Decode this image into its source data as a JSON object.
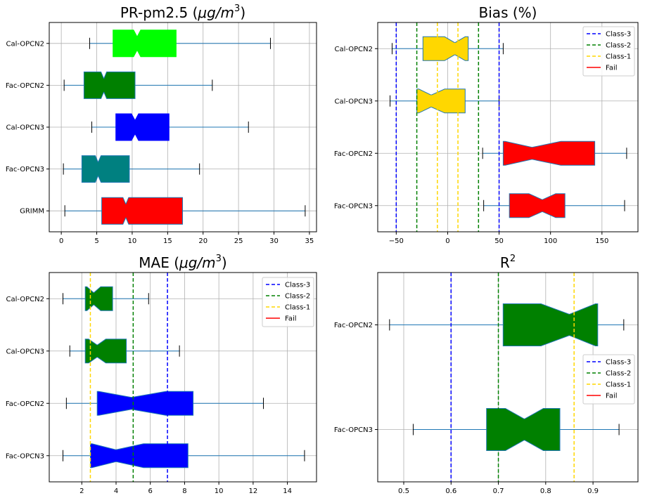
{
  "chart_data": [
    {
      "id": "pm25",
      "type": "boxplot",
      "orientation": "horizontal",
      "notched": true,
      "title": "PR-pm2.5 ",
      "title_math": "μg/m",
      "title_sup": "3",
      "title_suffix": "",
      "xlim": [
        -1.7,
        36
      ],
      "xticks": [
        0,
        5,
        10,
        15,
        20,
        25,
        30,
        35
      ],
      "xtick_labels": [
        "0",
        "5",
        "10",
        "15",
        "20",
        "25",
        "30",
        "35"
      ],
      "grid": true,
      "categories": [
        "Cal-OPCN2",
        "Fac-OPCN2",
        "Cal-OPCN3",
        "Fac-OPCN3",
        "GRIMM"
      ],
      "boxes": [
        {
          "label": "Cal-OPCN2",
          "whislo": 4.0,
          "q1": 7.3,
          "med": 10.7,
          "q3": 16.2,
          "whishi": 29.5,
          "notch": [
            10.2,
            11.2
          ],
          "color": "#00ff00",
          "edge": "#00ff00"
        },
        {
          "label": "Fac-OPCN2",
          "whislo": 0.4,
          "q1": 3.2,
          "med": 6.0,
          "q3": 10.4,
          "whishi": 21.3,
          "notch": [
            5.6,
            6.4
          ],
          "color": "#008000",
          "edge": "#1f77b4"
        },
        {
          "label": "Cal-OPCN3",
          "whislo": 4.3,
          "q1": 7.7,
          "med": 10.4,
          "q3": 15.2,
          "whishi": 26.4,
          "notch": [
            9.9,
            10.9
          ],
          "color": "#0000ff",
          "edge": "#0000ff"
        },
        {
          "label": "Fac-OPCN3",
          "whislo": 0.3,
          "q1": 2.9,
          "med": 5.2,
          "q3": 9.6,
          "whishi": 19.5,
          "notch": [
            4.8,
            5.6
          ],
          "color": "#008080",
          "edge": "#1f77b4"
        },
        {
          "label": "GRIMM",
          "whislo": 0.5,
          "q1": 5.7,
          "med": 9.1,
          "q3": 17.1,
          "whishi": 34.4,
          "notch": [
            8.7,
            9.5
          ],
          "color": "#ff0000",
          "edge": "#1f77b4"
        }
      ]
    },
    {
      "id": "bias",
      "type": "boxplot",
      "orientation": "horizontal",
      "notched": true,
      "title": "Bias (%)",
      "xlim": [
        -68,
        185
      ],
      "xticks": [
        -50,
        0,
        50,
        100,
        150
      ],
      "xtick_labels": [
        "−50",
        "0",
        "50",
        "100",
        "150"
      ],
      "grid": true,
      "categories": [
        "Cal-OPCN2",
        "Cal-OPCN3",
        "Fac-OPCN2",
        "Fac-OPCN3"
      ],
      "boxes": [
        {
          "label": "Cal-OPCN2",
          "whislo": -54,
          "q1": -24,
          "med": 7,
          "q3": 17,
          "whishi": 54,
          "notch": [
            -3,
            17
          ],
          "notch_clip_hi": 20,
          "color": "#ffd700",
          "edge": "#1f77b4"
        },
        {
          "label": "Cal-OPCN3",
          "whislo": -56,
          "q1": -30,
          "med": -16,
          "q3": 17,
          "whishi": 50,
          "notch": [
            -28,
            -3
          ],
          "color": "#ffd700",
          "edge": "#1f77b4"
        },
        {
          "label": "Fac-OPCN2",
          "whislo": 34,
          "q1": 54,
          "med": 82,
          "q3": 143,
          "whishi": 174,
          "notch": [
            56,
            110
          ],
          "color": "#ff0000",
          "edge": "#1f77b4"
        },
        {
          "label": "Fac-OPCN3",
          "whislo": 35,
          "q1": 60,
          "med": 92,
          "q3": 114,
          "whishi": 172,
          "notch": [
            79,
            105
          ],
          "color": "#ff0000",
          "edge": "#1f77b4"
        }
      ],
      "vlines": [
        {
          "x": -50,
          "class": "Class-3"
        },
        {
          "x": 50,
          "class": "Class-3"
        },
        {
          "x": -30,
          "class": "Class-2"
        },
        {
          "x": 30,
          "class": "Class-2"
        },
        {
          "x": -10,
          "class": "Class-1"
        },
        {
          "x": 10,
          "class": "Class-1"
        }
      ],
      "legend": [
        {
          "label": "Class-3",
          "color": "#0000ff",
          "dashed": true
        },
        {
          "label": "Class-2",
          "color": "#008000",
          "dashed": true
        },
        {
          "label": "Class-1",
          "color": "#ffd700",
          "dashed": true
        },
        {
          "label": "Fail",
          "color": "#ff0000",
          "dashed": false
        }
      ],
      "legend_position": "top-right"
    },
    {
      "id": "mae",
      "type": "boxplot",
      "orientation": "horizontal",
      "notched": true,
      "title": "MAE ",
      "title_math": "μg/m",
      "title_sup": "3",
      "title_suffix": "",
      "xlim": [
        0.1,
        15.7
      ],
      "xticks": [
        2,
        4,
        6,
        8,
        10,
        12,
        14
      ],
      "xtick_labels": [
        "2",
        "4",
        "6",
        "8",
        "10",
        "12",
        "14"
      ],
      "grid": true,
      "categories": [
        "Cal-OPCN2",
        "Cal-OPCN3",
        "Fac-OPCN2",
        "Fac-OPCN3"
      ],
      "boxes": [
        {
          "label": "Cal-OPCN2",
          "whislo": 0.9,
          "q1": 2.4,
          "med": 2.7,
          "q3": 3.8,
          "whishi": 5.9,
          "notch": [
            2.3,
            3.1
          ],
          "notch_clip_lo": 2.2,
          "color": "#008000",
          "edge": "#1f77b4"
        },
        {
          "label": "Cal-OPCN3",
          "whislo": 1.3,
          "q1": 2.3,
          "med": 2.9,
          "q3": 4.6,
          "whishi": 7.7,
          "notch": [
            2.4,
            3.4
          ],
          "notch_clip_lo": 2.2,
          "color": "#008000",
          "edge": "#1f77b4"
        },
        {
          "label": "Fac-OPCN2",
          "whislo": 1.1,
          "q1": 2.9,
          "med": 4.9,
          "q3": 8.5,
          "whishi": 12.6,
          "notch": [
            3.0,
            6.9
          ],
          "color": "#0000ff",
          "edge": "#1f77b4"
        },
        {
          "label": "Fac-OPCN3",
          "whislo": 0.9,
          "q1": 2.6,
          "med": 4.0,
          "q3": 8.2,
          "whishi": 15.0,
          "notch": [
            2.6,
            5.6
          ],
          "notch_clip_lo": 2.5,
          "color": "#0000ff",
          "edge": "#1f77b4"
        }
      ],
      "vlines": [
        {
          "x": 7,
          "class": "Class-3"
        },
        {
          "x": 5,
          "class": "Class-2"
        },
        {
          "x": 2.5,
          "class": "Class-1"
        }
      ],
      "legend": [
        {
          "label": "Class-3",
          "color": "#0000ff",
          "dashed": true
        },
        {
          "label": "Class-2",
          "color": "#008000",
          "dashed": true
        },
        {
          "label": "Class-1",
          "color": "#ffd700",
          "dashed": true
        },
        {
          "label": "Fail",
          "color": "#ff0000",
          "dashed": false
        }
      ],
      "legend_position": "top-right"
    },
    {
      "id": "r2",
      "type": "boxplot",
      "orientation": "horizontal",
      "notched": true,
      "title": "R",
      "title_sup": "2",
      "xlim": [
        0.445,
        0.995
      ],
      "xticks": [
        0.5,
        0.6,
        0.7,
        0.8,
        0.9
      ],
      "xtick_labels": [
        "0.5",
        "0.6",
        "0.7",
        "0.8",
        "0.9"
      ],
      "grid": true,
      "categories": [
        "Fac-OPCN2",
        "Fac-OPCN3"
      ],
      "boxes": [
        {
          "label": "Fac-OPCN2",
          "whislo": 0.47,
          "q1": 0.71,
          "med": 0.85,
          "q3": 0.905,
          "whishi": 0.965,
          "notch": [
            0.79,
            0.905
          ],
          "notch_clip_hi": 0.91,
          "color": "#008000",
          "edge": "#1f77b4"
        },
        {
          "label": "Fac-OPCN3",
          "whislo": 0.52,
          "q1": 0.675,
          "med": 0.755,
          "q3": 0.83,
          "whishi": 0.955,
          "notch": [
            0.715,
            0.795
          ],
          "color": "#008000",
          "edge": "#1f77b4"
        }
      ],
      "vlines": [
        {
          "x": 0.6,
          "class": "Class-3"
        },
        {
          "x": 0.7,
          "class": "Class-2"
        },
        {
          "x": 0.86,
          "class": "Class-1"
        }
      ],
      "legend": [
        {
          "label": "Class-3",
          "color": "#0000ff",
          "dashed": true
        },
        {
          "label": "Class-2",
          "color": "#008000",
          "dashed": true
        },
        {
          "label": "Class-1",
          "color": "#ffd700",
          "dashed": true
        },
        {
          "label": "Fail",
          "color": "#ff0000",
          "dashed": false
        }
      ],
      "legend_position": "center-right"
    }
  ],
  "class_colors": {
    "Class-3": "#0000ff",
    "Class-2": "#008000",
    "Class-1": "#ffd700",
    "Fail": "#ff0000"
  },
  "whisker_color": "#1f77b4",
  "grid_color": "#b0b0b0"
}
